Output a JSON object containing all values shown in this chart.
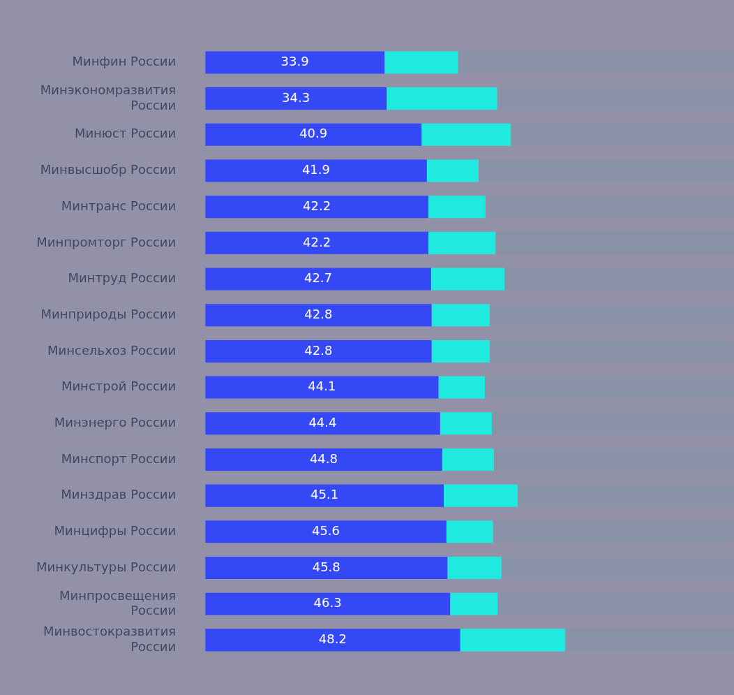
{
  "chart_data": {
    "type": "bar",
    "orientation": "horizontal",
    "stacked": true,
    "categories": [
      "Минфин России",
      "Минэкономразвития России",
      "Минюст России",
      "Минвысшобр России",
      "Минтранс России",
      "Минпромторг России",
      "Минтруд России",
      "Минприроды России",
      "Минсельхоз России",
      "Минстрой России",
      "Минэнерго России",
      "Минспорт России",
      "Минздрав России",
      "Минцифры России",
      "Минкультуры России",
      "Минпросвещения России",
      "Минвостокразвития России"
    ],
    "series": [
      {
        "color": "#3548f5",
        "values": [
          33.9,
          34.3,
          40.9,
          41.9,
          42.2,
          42.2,
          42.7,
          42.8,
          42.8,
          44.1,
          44.4,
          44.8,
          45.1,
          45.6,
          45.8,
          46.3,
          48.2
        ],
        "value_labels": [
          "33.9",
          "34.3",
          "40.9",
          "41.9",
          "42.2",
          "42.2",
          "42.7",
          "42.8",
          "42.8",
          "44.1",
          "44.4",
          "44.8",
          "45.1",
          "45.6",
          "45.8",
          "46.3",
          "48.2"
        ]
      },
      {
        "color": "#20eadf",
        "values": [
          13.9,
          20.9,
          16.9,
          9.8,
          10.8,
          12.7,
          13.9,
          11.0,
          11.0,
          8.8,
          9.8,
          9.8,
          14.0,
          8.8,
          10.2,
          9.0,
          19.9
        ]
      },
      {
        "color": "#8a92a8",
        "values": [
          52.2,
          44.8,
          42.2,
          48.3,
          47.0,
          45.1,
          43.4,
          46.2,
          46.2,
          47.1,
          45.8,
          45.4,
          40.9,
          45.6,
          44.0,
          44.7,
          31.9
        ]
      }
    ],
    "xlim": [
      0,
      100
    ],
    "tick_labels": "y",
    "grid": false,
    "legend": false
  }
}
